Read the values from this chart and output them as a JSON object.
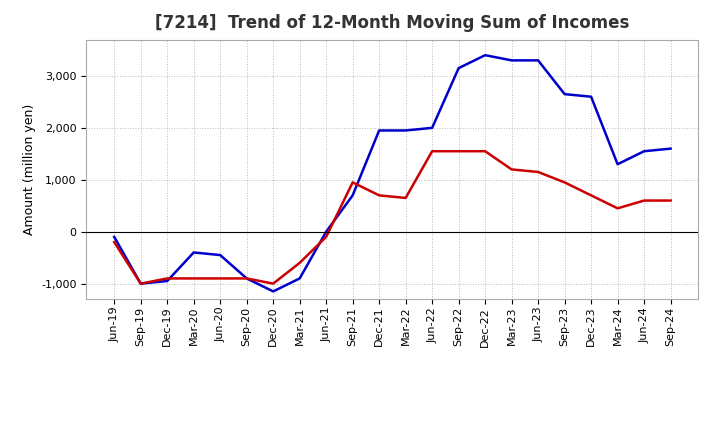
{
  "title": "[7214]  Trend of 12-Month Moving Sum of Incomes",
  "ylabel": "Amount (million yen)",
  "x_labels": [
    "Jun-19",
    "Sep-19",
    "Dec-19",
    "Mar-20",
    "Jun-20",
    "Sep-20",
    "Dec-20",
    "Mar-21",
    "Jun-21",
    "Sep-21",
    "Dec-21",
    "Mar-22",
    "Jun-22",
    "Sep-22",
    "Dec-22",
    "Mar-23",
    "Jun-23",
    "Sep-23",
    "Dec-23",
    "Mar-24",
    "Jun-24",
    "Sep-24"
  ],
  "ordinary_income": [
    -100,
    -1000,
    -950,
    -400,
    -450,
    -900,
    -1150,
    -900,
    0,
    700,
    1950,
    1950,
    2000,
    3150,
    3400,
    3300,
    3300,
    2650,
    2600,
    1300,
    1550,
    1600
  ],
  "net_income": [
    -200,
    -1000,
    -900,
    -900,
    -900,
    -900,
    -1000,
    -600,
    -100,
    950,
    700,
    650,
    1550,
    1550,
    1550,
    1200,
    1150,
    950,
    700,
    450,
    600,
    600
  ],
  "ordinary_color": "#0000cc",
  "net_color": "#cc0000",
  "ylim": [
    -1300,
    3700
  ],
  "yticks": [
    -1000,
    0,
    1000,
    2000,
    3000
  ],
  "bg_color": "#ffffff",
  "plot_bg_color": "#ffffff",
  "grid_color": "#bbbbbb",
  "linewidth": 1.8,
  "title_fontsize": 12,
  "axis_fontsize": 9,
  "tick_fontsize": 8,
  "legend_fontsize": 9
}
